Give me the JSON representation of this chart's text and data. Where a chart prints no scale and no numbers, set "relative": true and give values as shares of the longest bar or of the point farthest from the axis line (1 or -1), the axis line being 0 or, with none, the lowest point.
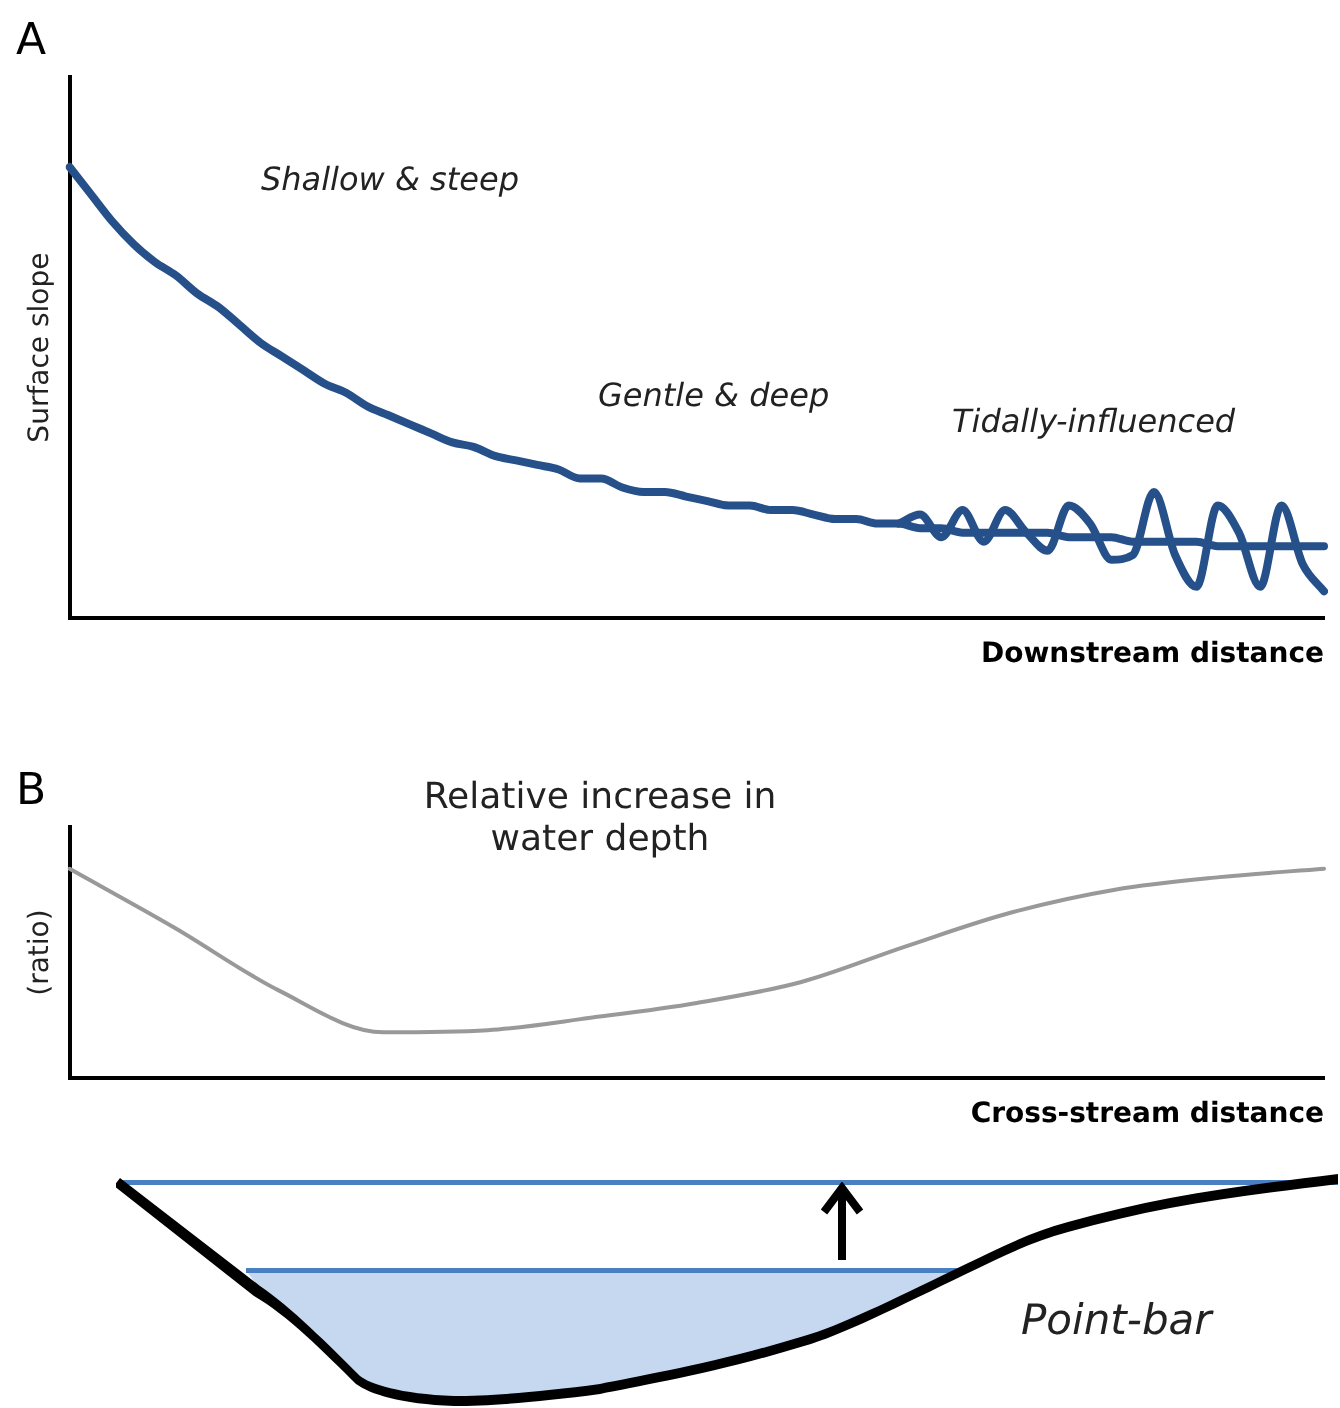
{
  "chart_data": [
    {
      "type": "line",
      "title": "A",
      "xlabel": "Downstream distance",
      "ylabel": "Surface slope",
      "relative": true,
      "tick_labels": false,
      "grid": false,
      "legend": false,
      "marker": "none",
      "categories": [
        null,
        null,
        null,
        null,
        null,
        null,
        null,
        null,
        null,
        null,
        null,
        null,
        null,
        null,
        null,
        null,
        null,
        null,
        null,
        null,
        null,
        null,
        null,
        null,
        null,
        null,
        null,
        null,
        null,
        null,
        null,
        null,
        null,
        null,
        null,
        null,
        null,
        null,
        null,
        null,
        null,
        null,
        null,
        null,
        null,
        null,
        null,
        null,
        null,
        null,
        null,
        null,
        null,
        null,
        null,
        null,
        null,
        null,
        null,
        null
      ],
      "series": [
        {
          "color": "#26508a",
          "values": [
            1.0,
            0.94,
            0.88,
            0.83,
            0.79,
            0.76,
            0.72,
            0.69,
            0.65,
            0.61,
            0.58,
            0.55,
            0.52,
            0.5,
            0.47,
            0.45,
            0.43,
            0.41,
            0.39,
            0.38,
            0.36,
            0.35,
            0.34,
            0.33,
            0.31,
            0.31,
            0.29,
            0.28,
            0.28,
            0.27,
            0.26,
            0.25,
            0.25,
            0.24,
            0.24,
            0.23,
            0.22,
            0.22,
            0.21,
            0.21,
            0.2,
            0.2,
            0.19,
            0.19,
            0.19,
            0.19,
            0.19,
            0.18,
            0.18,
            0.18,
            0.17,
            0.17,
            0.17,
            0.17,
            0.16,
            0.16,
            0.16,
            0.16,
            0.16,
            0.16
          ]
        },
        {
          "color": "#26508a",
          "values": [
            null,
            null,
            null,
            null,
            null,
            null,
            null,
            null,
            null,
            null,
            null,
            null,
            null,
            null,
            null,
            null,
            null,
            null,
            null,
            null,
            null,
            null,
            null,
            null,
            null,
            null,
            null,
            null,
            null,
            null,
            null,
            null,
            null,
            null,
            null,
            null,
            null,
            null,
            null,
            0.21,
            0.23,
            0.18,
            0.24,
            0.17,
            0.24,
            0.19,
            0.15,
            0.25,
            0.21,
            0.13,
            0.14,
            0.28,
            0.14,
            0.07,
            0.25,
            0.19,
            0.07,
            0.25,
            0.12,
            0.06
          ]
        }
      ],
      "annotations": [
        "Shallow & steep",
        "Gentle & deep",
        "Tidally-influenced"
      ]
    },
    {
      "type": "line",
      "title": "B",
      "xlabel": "Cross-stream distance",
      "ylabel": "(ratio)",
      "relative": true,
      "tick_labels": false,
      "grid": false,
      "legend": false,
      "marker": "none",
      "categories": [
        null,
        null,
        null,
        null,
        null,
        null,
        null,
        null,
        null,
        null,
        null,
        null,
        null
      ],
      "series": [
        {
          "color": "#999999",
          "values": [
            1.0,
            0.72,
            0.42,
            0.22,
            0.23,
            0.29,
            0.36,
            0.46,
            0.63,
            0.79,
            0.9,
            0.96,
            1.0
          ]
        }
      ],
      "annotations": [
        "Relative increase in water depth",
        "Point-bar"
      ]
    }
  ]
}
